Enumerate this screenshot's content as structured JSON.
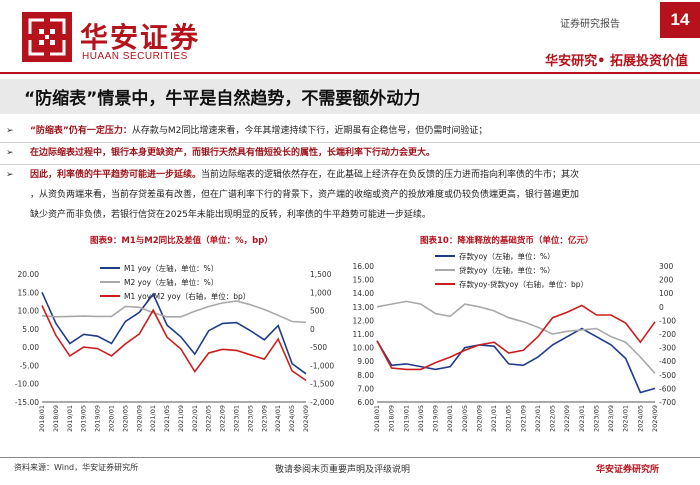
{
  "header": {
    "logo_cn": "华安证券",
    "logo_en": "HUAAN SECURITIES",
    "report_type": "证券研究报告",
    "page_number": "14",
    "slogan": "华安研究• 拓展投资价值"
  },
  "title": "“防缩表”情景中，牛平是自然趋势，不需要额外动力",
  "bullets": [
    {
      "bold": "“防缩表”仍有一定压力：",
      "text": "从存款与M2同比增速来看，今年其增速持续下行，近期虽有企稳信号，但仍需时间验证；"
    },
    {
      "bold": "在边际缩表过程中，银行本身更缺资产，而银行天然具有借短投长的属性，长端利率下行动力会更大。",
      "text": ""
    },
    {
      "bold": "因此，利率债的牛平趋势可能进一步延续。",
      "text": "当前边际缩表的逻辑依然存在，在此基础上经济存在负反馈的压力进而指向利率债的牛市；其次",
      "line2": "，从资负两端来看，当前存贷差虽有改善，但在广谱利率下行的背景下，资产端的收缩或资产的投放难度或仍较负债端更高，银行普遍更加",
      "line3": "缺少资产而非负债，若银行信贷在2025年未能出现明显的反转，利率债的牛平趋势可能进一步延续。"
    }
  ],
  "charts": {
    "left_caption": "图表9：M1与M2同比及差值（单位：%，bp）",
    "right_caption": "图表10：降准释放的基础货币（单位：亿元）"
  },
  "chart_data": [
    {
      "type": "line",
      "x": [
        "2018/01",
        "2018/09",
        "2019/01",
        "2019/05",
        "2019/09",
        "2020/01",
        "2020/05",
        "2020/09",
        "2021/01",
        "2021/05",
        "2021/09",
        "2022/01",
        "2022/05",
        "2022/09",
        "2023/01",
        "2023/05",
        "2023/09",
        "2024/01",
        "2024/05",
        "2024/09"
      ],
      "series": [
        {
          "name": "M1 yoy（左轴，单位：%）",
          "color": "#1f3c88",
          "axis": "left",
          "values": [
            15.0,
            6.5,
            1.0,
            3.5,
            3.0,
            1.0,
            7.0,
            9.5,
            14.5,
            6.0,
            2.8,
            -1.9,
            4.5,
            6.5,
            6.7,
            4.5,
            2.0,
            5.9,
            -4.5,
            -7.3
          ]
        },
        {
          "name": "M2 yoy（左轴，单位：%）",
          "color": "#a9a9a9",
          "axis": "left",
          "values": [
            8.6,
            8.3,
            8.4,
            8.5,
            8.4,
            8.4,
            11.1,
            10.9,
            9.4,
            8.3,
            8.3,
            9.8,
            11.1,
            12.1,
            12.6,
            11.6,
            10.3,
            8.7,
            7.0,
            6.8
          ]
        },
        {
          "name": "M1 yoy-M2 yoy（右轴，单位：bp）",
          "color": "#cc1d1d",
          "axis": "right",
          "values": [
            640,
            -180,
            -740,
            -500,
            -540,
            -740,
            -410,
            -140,
            510,
            -230,
            -550,
            -1170,
            -660,
            -560,
            -590,
            -710,
            -830,
            -280,
            -1150,
            -1410
          ]
        }
      ],
      "ylim_left": [
        -15,
        20
      ],
      "ylim_right": [
        -2000,
        1500
      ],
      "yticks_left": [
        "20.00",
        "15.00",
        "10.00",
        "5.00",
        "0.00",
        "-5.00",
        "-10.00",
        "-15.00"
      ],
      "yticks_right": [
        "1,500",
        "1,000",
        "500",
        "0",
        "-500",
        "-1,000",
        "-1,500",
        "-2,000"
      ]
    },
    {
      "type": "line",
      "x": [
        "2018/01",
        "2018/09",
        "2019/01",
        "2019/05",
        "2019/09",
        "2020/01",
        "2020/05",
        "2020/09",
        "2021/01",
        "2021/05",
        "2021/09",
        "2022/01",
        "2022/05",
        "2022/09",
        "2023/01",
        "2023/05",
        "2023/09",
        "2024/01",
        "2024/05",
        "2024/09"
      ],
      "series": [
        {
          "name": "存款yoy（左轴，单位：%）",
          "color": "#1f3c88",
          "axis": "left",
          "values": [
            10.5,
            8.7,
            8.8,
            8.6,
            8.4,
            8.6,
            10.0,
            10.2,
            10.1,
            8.8,
            8.7,
            9.3,
            10.2,
            10.8,
            11.4,
            10.8,
            10.2,
            9.2,
            6.7,
            7.0
          ]
        },
        {
          "name": "贷款yoy（左轴，单位：%）",
          "color": "#a9a9a9",
          "axis": "left",
          "values": [
            13.0,
            13.2,
            13.4,
            13.2,
            12.5,
            12.3,
            13.2,
            13.0,
            12.7,
            12.2,
            11.9,
            11.5,
            11.0,
            11.2,
            11.3,
            11.4,
            10.8,
            10.4,
            9.3,
            8.1
          ]
        },
        {
          "name": "存款yoy-贷款yoy（右轴，单位：bp）",
          "color": "#cc1d1d",
          "axis": "right",
          "values": [
            -250,
            -450,
            -460,
            -460,
            -410,
            -370,
            -320,
            -280,
            -260,
            -340,
            -320,
            -220,
            -80,
            -40,
            10,
            -60,
            -60,
            -120,
            -260,
            -110
          ]
        }
      ],
      "ylim_left": [
        6,
        16
      ],
      "ylim_right": [
        -700,
        300
      ],
      "yticks_left": [
        "16.00",
        "15.00",
        "14.00",
        "13.00",
        "12.00",
        "11.00",
        "10.00",
        "9.00",
        "8.00",
        "7.00",
        "6.00"
      ],
      "yticks_right": [
        "300",
        "200",
        "100",
        "0",
        "-100",
        "-200",
        "-300",
        "-400",
        "-500",
        "-600",
        "-700"
      ]
    }
  ],
  "footer": {
    "source": "资料来源：Wind，华安证券研究所",
    "disclaimer": "敬请参阅末页重要声明及评级说明",
    "firm": "华安证券研究所"
  }
}
